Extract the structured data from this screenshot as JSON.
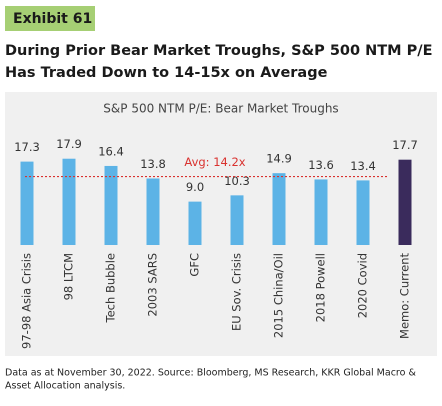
{
  "exhibit": "Exhibit 61",
  "heading": [
    "During Prior Bear Market Troughs, S&P 500 NTM P/E",
    "Has Traded Down to 14-15x on Average"
  ],
  "chart_data": {
    "type": "bar",
    "title": "S&P 500 NTM P/E: Bear Market Troughs",
    "categories": [
      "97-98 Asia Crisis",
      "98 LTCM",
      "Tech Bubble",
      "2003 SARS",
      "GFC",
      "EU Sov. Crisis",
      "2015 China/Oil",
      "2018 Powell",
      "2020 Covid",
      "Memo: Current"
    ],
    "values": [
      17.3,
      17.9,
      16.4,
      13.8,
      9.0,
      10.3,
      14.9,
      13.6,
      13.4,
      17.7
    ],
    "value_labels": [
      "17.3",
      "17.9",
      "16.4",
      "13.8",
      "9.0",
      "10.3",
      "14.9",
      "13.6",
      "13.4",
      "17.7"
    ],
    "colors": [
      "#5cb3e6",
      "#5cb3e6",
      "#5cb3e6",
      "#5cb3e6",
      "#5cb3e6",
      "#5cb3e6",
      "#5cb3e6",
      "#5cb3e6",
      "#5cb3e6",
      "#3a2b5c"
    ],
    "average": {
      "value": 14.2,
      "label": "Avg: 14.2x",
      "color": "#d9322f"
    }
  },
  "footnote": [
    "Data as at November 30, 2022. Source: Bloomberg, MS Research, KKR Global Macro &",
    "Asset Allocation analysis."
  ]
}
